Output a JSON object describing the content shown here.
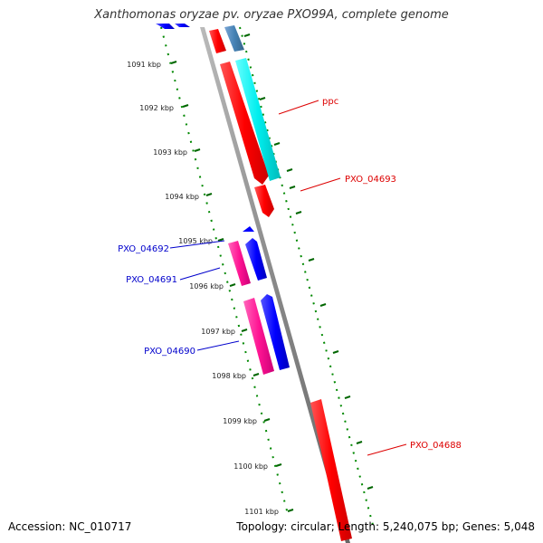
{
  "header": {
    "title": "Xanthomonas oryzae pv. oryzae PXO99A, complete genome"
  },
  "footer": {
    "accession_label": "Accession:",
    "accession_value": "NC_010717",
    "topology_label": "Topology:",
    "topology_value": "circular;",
    "length_label": "Length:",
    "length_value": "5,240,075 bp;",
    "genes_label": "Genes:",
    "genes_value": "5,048"
  },
  "map": {
    "ticks": [
      "1091 kbp",
      "1092 kbp",
      "1093 kbp",
      "1094 kbp",
      "1095 kbp",
      "1096 kbp",
      "1097 kbp",
      "1098 kbp",
      "1099 kbp",
      "1100 kbp",
      "1101 kbp"
    ],
    "gene_labels": [
      {
        "text": "ppc",
        "color": "#dd0000"
      },
      {
        "text": "PXO_04693",
        "color": "#dd0000"
      },
      {
        "text": "PXO_04692",
        "color": "#0000cc"
      },
      {
        "text": "PXO_04691",
        "color": "#0000cc"
      },
      {
        "text": "PXO_04690",
        "color": "#0000cc"
      },
      {
        "text": "PXO_04688",
        "color": "#dd0000"
      }
    ],
    "colors": {
      "forward_cds": "#ff0000",
      "reverse_cds": "#0000ff",
      "other_forward": "#00eeee",
      "other_reverse": "#ff1493",
      "rna": "#4682b4",
      "backbone": "#888888",
      "tick_dots": "#008800",
      "tick_marks": "#006600"
    }
  }
}
